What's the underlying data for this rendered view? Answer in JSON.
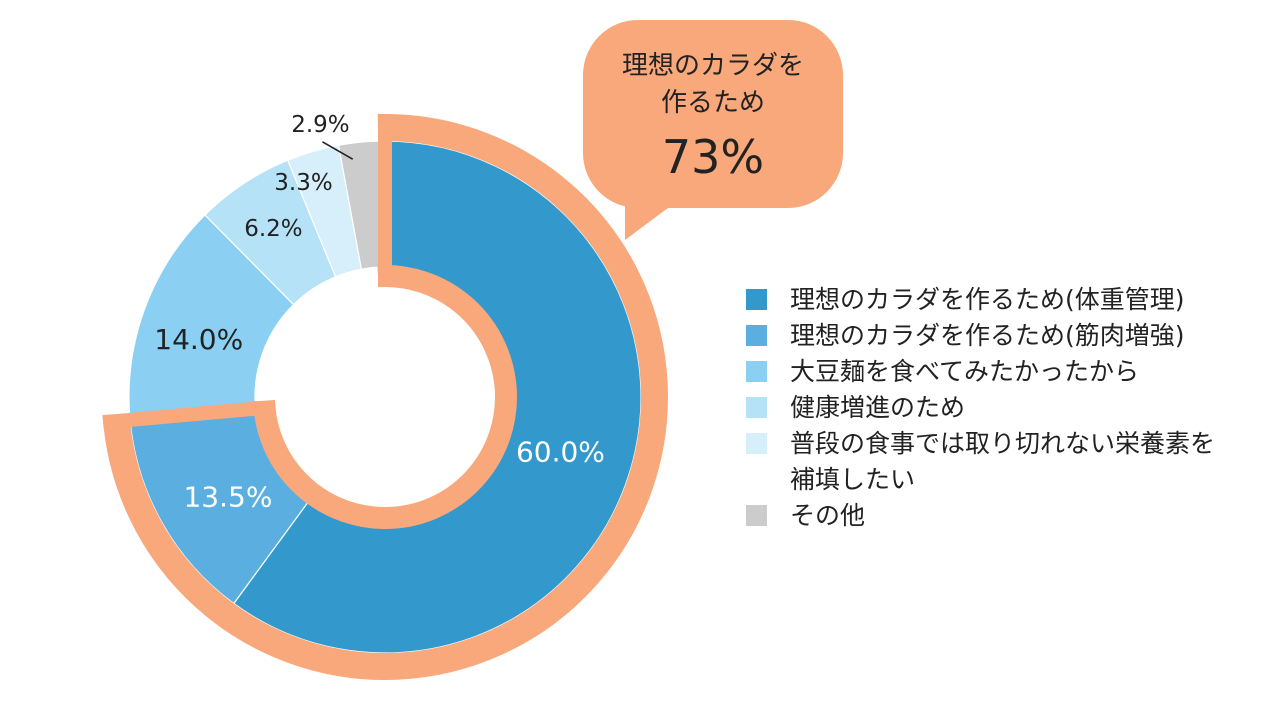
{
  "chart_data": {
    "type": "pie",
    "donut": true,
    "categories": [
      "理想のカラダを作るため(体重管理)",
      "理想のカラダを作るため(筋肉増強)",
      "大豆麺を食べてみたかったから",
      "健康増進のため",
      "普段の食事では取り切れない栄養素を補填したい",
      "その他"
    ],
    "values": [
      60.0,
      13.5,
      14.0,
      6.2,
      3.3,
      2.9
    ],
    "value_labels": [
      "60.0%",
      "13.5%",
      "14.0%",
      "6.2%",
      "3.3%",
      "2.9%"
    ],
    "colors": [
      "#3399cd",
      "#5aafe0",
      "#8bd0f3",
      "#b5e2f7",
      "#d6effb",
      "#cccccc"
    ],
    "highlight": {
      "indices": [
        0,
        1
      ],
      "color": "#f8a87b"
    },
    "legend_position": "right"
  },
  "callout": {
    "label_lines": [
      "理想のカラダを",
      "作るため"
    ],
    "value": "73%"
  }
}
